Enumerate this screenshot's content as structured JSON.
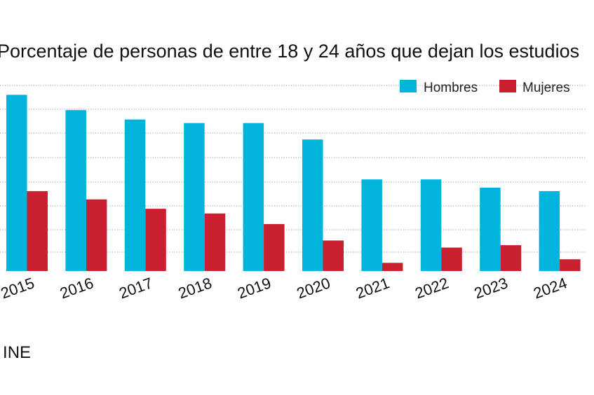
{
  "chart_data": {
    "type": "bar",
    "title": "Porcentaje de personas de entre 18 y 24 años que dejan los estudios",
    "categories": [
      "2015",
      "2016",
      "2017",
      "2018",
      "2019",
      "2020",
      "2021",
      "2022",
      "2023",
      "2024"
    ],
    "series": [
      {
        "name": "Hombres",
        "color": "#00b4db",
        "values": [
          24.0,
          22.7,
          21.9,
          21.6,
          21.6,
          20.2,
          16.8,
          16.8,
          16.1,
          15.8
        ]
      },
      {
        "name": "Mujeres",
        "color": "#c8202f",
        "values": [
          15.8,
          15.1,
          14.3,
          13.9,
          13.0,
          11.6,
          9.7,
          11.0,
          11.2,
          10.0
        ]
      }
    ],
    "ylim": [
      9,
      24.8
    ],
    "grid": true,
    "legend": "top-right",
    "xlabel": "",
    "ylabel": ""
  },
  "source": "Fuente: INE"
}
